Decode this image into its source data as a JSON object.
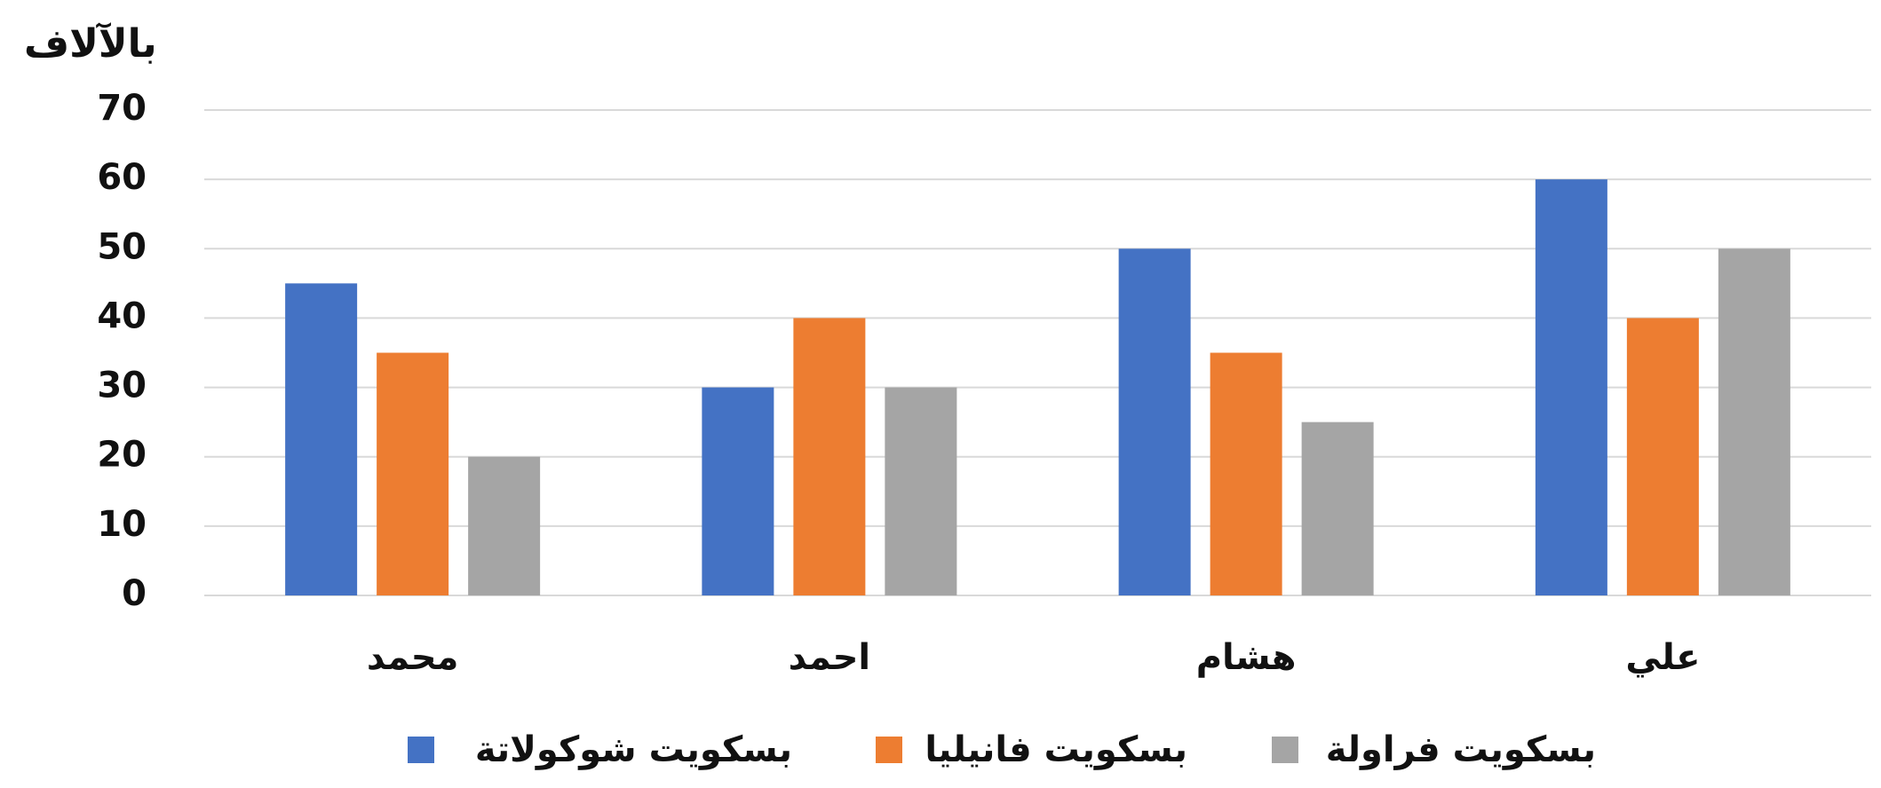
{
  "chart_data": {
    "type": "bar",
    "title": "بالآلاف",
    "categories": [
      "محمد",
      "احمد",
      "هشام",
      "علي"
    ],
    "series": [
      {
        "name": "بسكويت شوكولاتة",
        "color": "#4472c4",
        "values": [
          45,
          30,
          50,
          60
        ]
      },
      {
        "name": "بسكويت فانيليا",
        "color": "#ed7d31",
        "values": [
          35,
          40,
          35,
          40
        ]
      },
      {
        "name": "بسكويت فراولة",
        "color": "#a5a5a5",
        "values": [
          20,
          30,
          25,
          50
        ]
      }
    ],
    "ylim": [
      0,
      70
    ],
    "yticks": [
      0,
      10,
      20,
      30,
      40,
      50,
      60,
      70
    ],
    "grid": true,
    "legend": "bottom"
  }
}
